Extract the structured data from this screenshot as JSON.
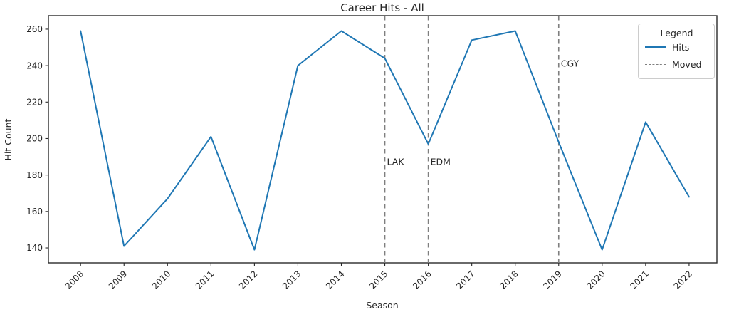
{
  "chart_data": {
    "type": "line",
    "title": "Career Hits - All",
    "xlabel": "Season",
    "ylabel": "Hit Count",
    "x": [
      2008,
      2009,
      2010,
      2011,
      2012,
      2013,
      2014,
      2015,
      2016,
      2017,
      2018,
      2019,
      2020,
      2021,
      2022
    ],
    "series": [
      {
        "name": "Hits",
        "color": "#1f77b4",
        "values": [
          259,
          141,
          167,
          201,
          139,
          240,
          259,
          244,
          197,
          254,
          259,
          198,
          139,
          209,
          168
        ]
      }
    ],
    "moved_events": [
      {
        "year": 2015,
        "label": "LAK",
        "label_y": 187
      },
      {
        "year": 2016,
        "label": "EDM",
        "label_y": 187
      },
      {
        "year": 2019,
        "label": "CGY",
        "label_y": 241
      }
    ],
    "legend": {
      "title": "Legend",
      "position": "upper right",
      "entries": [
        {
          "label": "Hits",
          "style": "solid",
          "color": "#1f77b4"
        },
        {
          "label": "Moved",
          "style": "dashed",
          "color": "#7f7f7f"
        }
      ]
    },
    "xticks": [
      2008,
      2009,
      2010,
      2011,
      2012,
      2013,
      2014,
      2015,
      2016,
      2017,
      2018,
      2019,
      2020,
      2021,
      2022
    ],
    "yticks": [
      140,
      160,
      180,
      200,
      220,
      240,
      260
    ],
    "xlim": [
      2007.26,
      2022.64
    ],
    "ylim": [
      131.8,
      267.4
    ],
    "grid": false,
    "colors": {
      "line": "#1f77b4",
      "moved": "#7f7f7f",
      "text": "#262626",
      "spine": "#2b2b2b"
    }
  }
}
